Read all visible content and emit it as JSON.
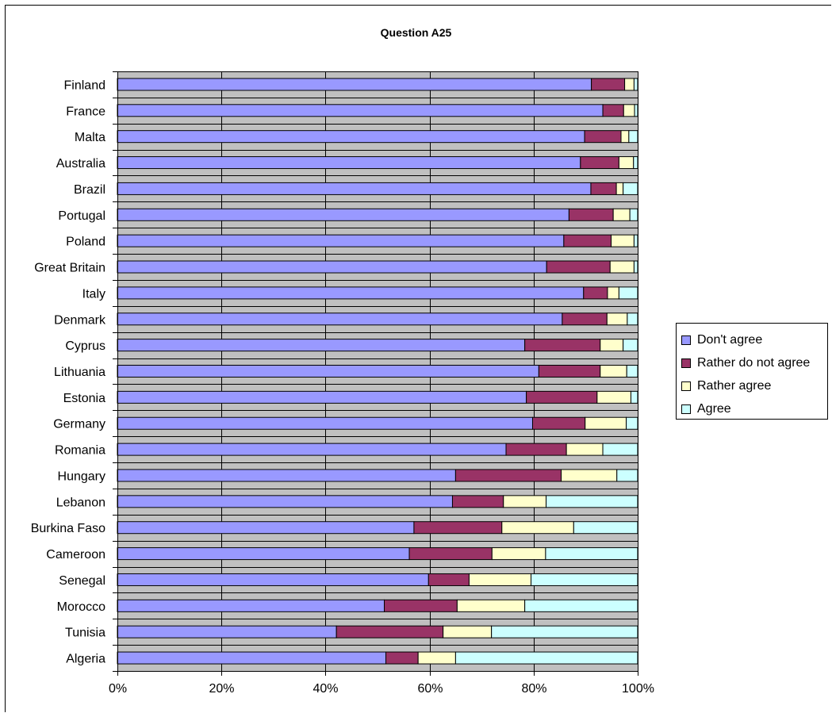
{
  "chart_data": {
    "type": "bar",
    "orientation": "horizontal",
    "stacked": "percent",
    "title": "Question A25",
    "xlabel": "",
    "ylabel": "",
    "xlim": [
      0,
      100
    ],
    "x_ticks": [
      "0%",
      "20%",
      "40%",
      "60%",
      "80%",
      "100%"
    ],
    "grid": true,
    "legend_position": "right",
    "plot_background": "#c0c0c0",
    "categories": [
      "Finland",
      "France",
      "Malta",
      "Australia",
      "Brazil",
      "Portugal",
      "Poland",
      "Great Britain",
      "Italy",
      "Denmark",
      "Cyprus",
      "Lithuania",
      "Estonia",
      "Germany",
      "Romania",
      "Hungary",
      "Lebanon",
      "Burkina Faso",
      "Cameroon",
      "Senegal",
      "Morocco",
      "Tunisia",
      "Algeria"
    ],
    "series": [
      {
        "name": "Don't agree",
        "color": "#9999ff",
        "values": [
          91.1,
          93.3,
          89.8,
          89.0,
          91.0,
          86.8,
          85.8,
          82.5,
          89.6,
          85.5,
          78.3,
          81.0,
          78.6,
          79.8,
          74.7,
          65.0,
          64.4,
          57.0,
          56.1,
          59.8,
          51.3,
          42.1,
          51.6
        ]
      },
      {
        "name": "Rather do not agree",
        "color": "#993366",
        "values": [
          6.4,
          4.0,
          7.0,
          7.4,
          4.9,
          8.5,
          9.1,
          12.2,
          4.6,
          8.6,
          14.5,
          11.8,
          13.6,
          10.1,
          11.6,
          20.3,
          9.8,
          16.9,
          15.9,
          7.8,
          14.0,
          20.5,
          6.2
        ]
      },
      {
        "name": "Rather agree",
        "color": "#ffffcc",
        "values": [
          1.8,
          2.1,
          1.5,
          2.8,
          1.3,
          3.2,
          4.4,
          4.6,
          2.2,
          3.9,
          4.4,
          5.1,
          6.5,
          7.9,
          7.0,
          10.7,
          8.2,
          13.8,
          10.3,
          11.9,
          13.0,
          9.3,
          7.2
        ]
      },
      {
        "name": "Agree",
        "color": "#ccffff",
        "values": [
          0.7,
          0.6,
          1.7,
          0.8,
          2.8,
          1.5,
          0.7,
          0.7,
          3.6,
          2.0,
          2.8,
          2.1,
          1.3,
          2.2,
          6.7,
          4.0,
          17.6,
          12.3,
          17.7,
          20.5,
          21.7,
          28.1,
          35.0
        ]
      }
    ]
  }
}
